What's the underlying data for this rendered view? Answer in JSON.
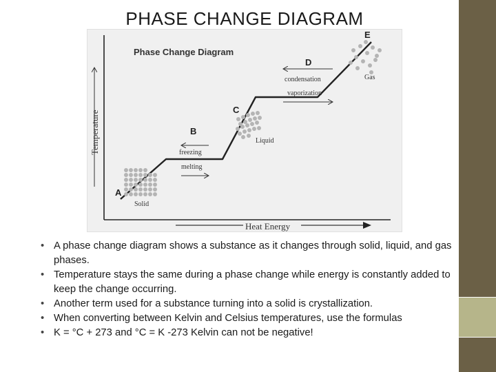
{
  "slide": {
    "title": "PHASE CHANGE DIAGRAM",
    "colors": {
      "sidebar_dark": "#6b6046",
      "sidebar_light": "#b6b58a",
      "figure_bg": "#f0f0f0"
    }
  },
  "diagram": {
    "title": "Phase Change Diagram",
    "y_axis_label": "Temperature",
    "x_axis_label": "Heat Energy",
    "points": {
      "a": "A",
      "b": "B",
      "c": "C",
      "d": "D",
      "e": "E"
    },
    "labels": {
      "solid": "Solid",
      "liquid": "Liquid",
      "gas": "Gas",
      "freezing": "freezing",
      "melting": "melting",
      "condensation": "condensation",
      "vaporization": "vaporization"
    }
  },
  "bullets": [
    "A phase change diagram shows a substance as it changes through solid, liquid, and gas phases.",
    "Temperature stays the same during a phase change while energy is constantly added to keep the change occurring.",
    "Another term used for a substance turning into a solid is crystallization.",
    "When converting between Kelvin and Celsius temperatures, use the formulas",
    "K = °C + 273  and  °C = K -273     Kelvin can not be negative!"
  ]
}
